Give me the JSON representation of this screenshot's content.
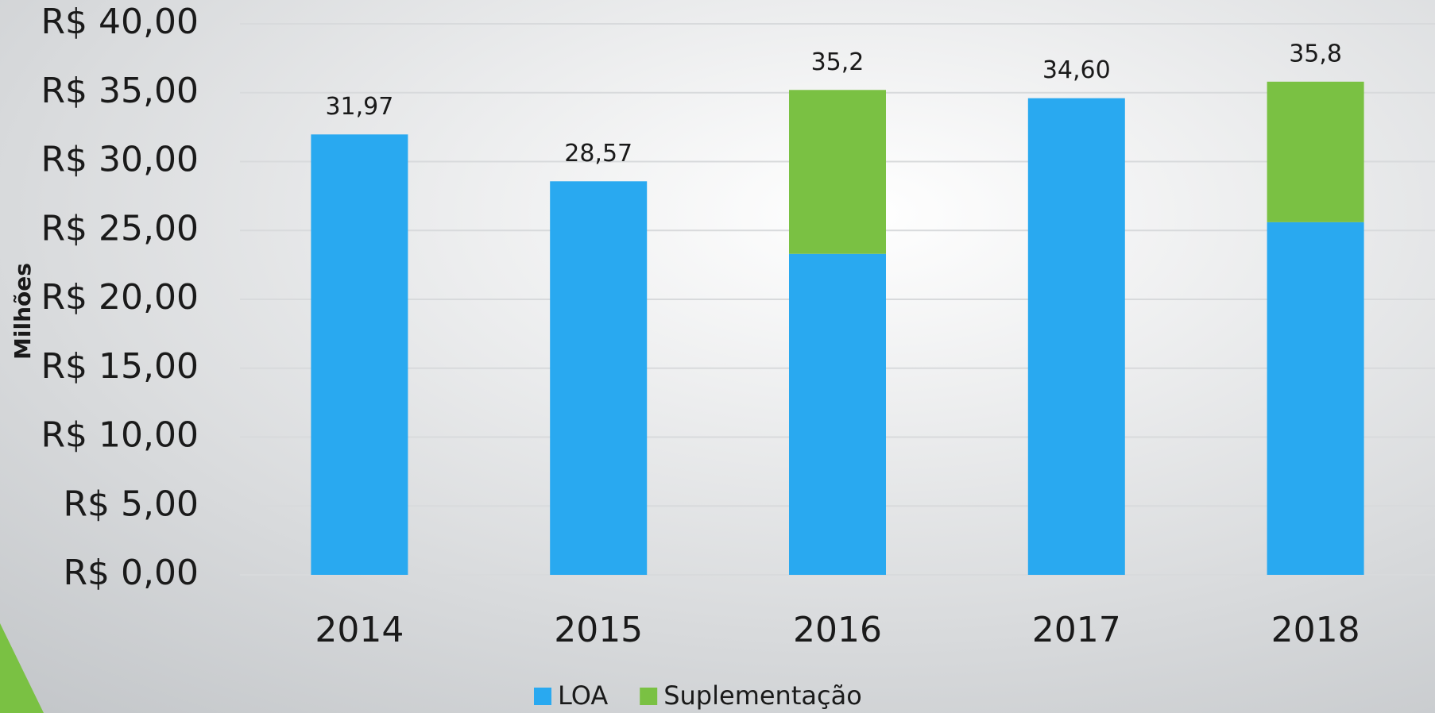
{
  "chart_data": {
    "type": "stacked_bar",
    "y_axis_label": "Milhões",
    "categories": [
      "2014",
      "2015",
      "2016",
      "2017",
      "2018"
    ],
    "series": [
      {
        "name": "LOA",
        "color": "#29a9f0",
        "values": [
          31.97,
          28.57,
          23.3,
          34.6,
          25.6
        ]
      },
      {
        "name": "Suplementação",
        "color": "#7ac143",
        "values": [
          0,
          0,
          11.9,
          0,
          10.2
        ]
      }
    ],
    "totals": [
      31.97,
      28.57,
      35.2,
      34.6,
      35.8
    ],
    "total_labels": [
      "31,97",
      "28,57",
      "35,2",
      "34,60",
      "35,8"
    ],
    "ylim": [
      0,
      40
    ],
    "yticks": [
      {
        "value": 0,
        "label": "R$ 0,00"
      },
      {
        "value": 5,
        "label": "R$ 5,00"
      },
      {
        "value": 10,
        "label": "R$ 10,00"
      },
      {
        "value": 15,
        "label": "R$ 15,00"
      },
      {
        "value": 20,
        "label": "R$ 20,00"
      },
      {
        "value": 25,
        "label": "R$ 25,00"
      },
      {
        "value": 30,
        "label": "R$ 30,00"
      },
      {
        "value": 35,
        "label": "R$ 35,00"
      },
      {
        "value": 40,
        "label": "R$ 40,00"
      }
    ],
    "grid": true,
    "legend": "bottom"
  }
}
